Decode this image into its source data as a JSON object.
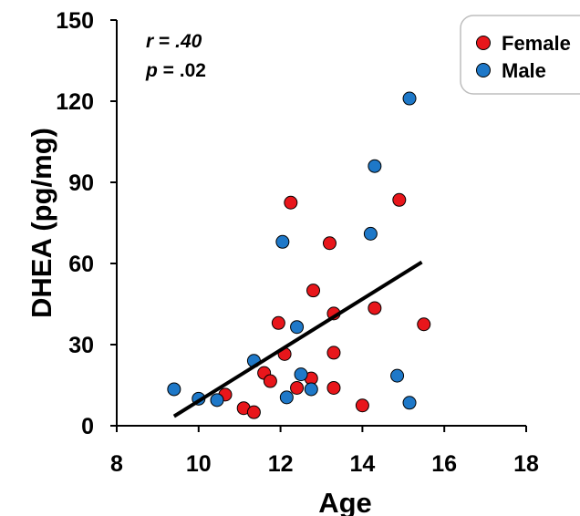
{
  "chart_data": {
    "type": "scatter",
    "title": "",
    "xlabel": "Age",
    "ylabel": "DHEA (pg/mg)",
    "xlim": [
      8,
      18
    ],
    "ylim": [
      0,
      150
    ],
    "x_ticks": [
      "8",
      "10",
      "12",
      "14",
      "16",
      "18"
    ],
    "y_ticks": [
      "0",
      "30",
      "60",
      "90",
      "120",
      "150"
    ],
    "grid": false,
    "legend_position": "top-right",
    "annotation": {
      "r": ".40",
      "p": ".02",
      "r_label": "r",
      "p_label": "p",
      "eq": " = "
    },
    "trendline": {
      "x": [
        9.4,
        15.45
      ],
      "y": [
        3.5,
        60.5
      ],
      "color": "#000000"
    },
    "series": [
      {
        "name": "Female",
        "color": "#e8161b",
        "points": [
          [
            10.65,
            11.5
          ],
          [
            11.1,
            6.5
          ],
          [
            11.35,
            5.0
          ],
          [
            11.6,
            19.5
          ],
          [
            11.75,
            16.5
          ],
          [
            11.95,
            38.0
          ],
          [
            12.1,
            26.5
          ],
          [
            12.25,
            82.5
          ],
          [
            12.4,
            14.0
          ],
          [
            12.75,
            17.5
          ],
          [
            12.8,
            50.0
          ],
          [
            13.2,
            67.5
          ],
          [
            13.3,
            41.5
          ],
          [
            13.3,
            27.0
          ],
          [
            13.3,
            14.0
          ],
          [
            14.0,
            7.5
          ],
          [
            14.3,
            43.5
          ],
          [
            14.9,
            83.5
          ],
          [
            15.5,
            37.5
          ]
        ]
      },
      {
        "name": "Male",
        "color": "#1e78c8",
        "points": [
          [
            9.4,
            13.5
          ],
          [
            10.0,
            10.0
          ],
          [
            10.45,
            9.5
          ],
          [
            11.35,
            24.0
          ],
          [
            12.05,
            68.0
          ],
          [
            12.15,
            10.5
          ],
          [
            12.4,
            36.5
          ],
          [
            12.5,
            19.0
          ],
          [
            12.75,
            13.5
          ],
          [
            14.2,
            71.0
          ],
          [
            14.3,
            96.0
          ],
          [
            14.85,
            18.5
          ],
          [
            15.15,
            121.0
          ],
          [
            15.15,
            8.5
          ]
        ]
      }
    ]
  }
}
